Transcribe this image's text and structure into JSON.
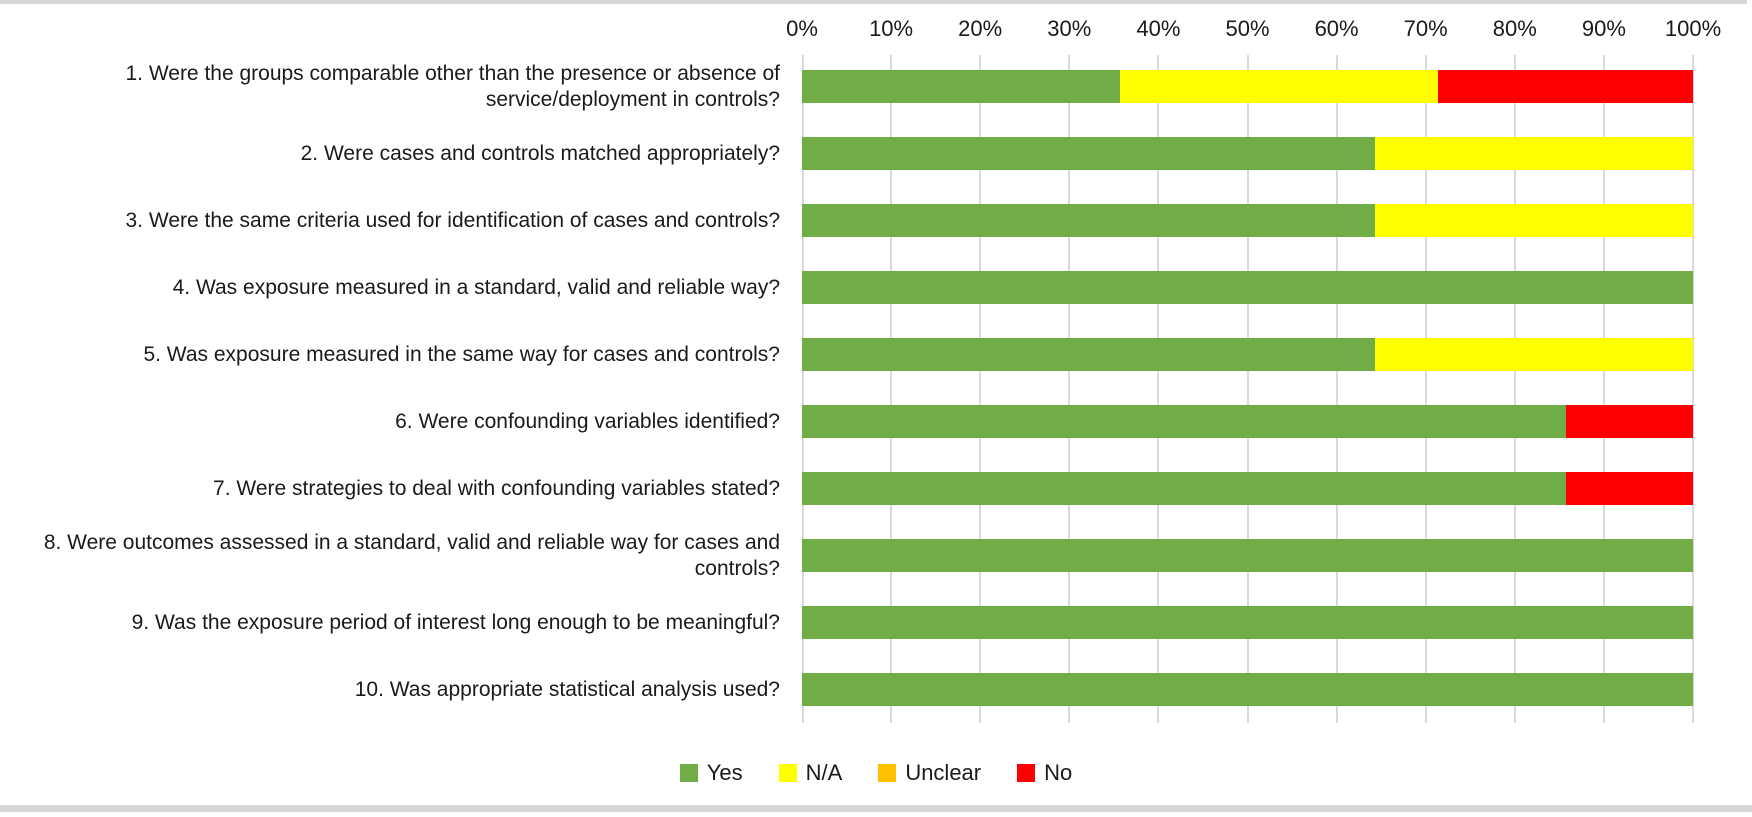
{
  "chart_data": {
    "type": "bar",
    "orientation": "horizontal_stacked",
    "title": "",
    "xlabel": "",
    "ylabel": "",
    "xlim": [
      0,
      100
    ],
    "grid": true,
    "x_ticks": [
      "0%",
      "10%",
      "20%",
      "30%",
      "40%",
      "50%",
      "60%",
      "70%",
      "80%",
      "90%",
      "100%"
    ],
    "categories": [
      "1. Were the groups comparable other than the presence or absence of service/deployment  in controls?",
      "2. Were cases and controls matched appropriately?",
      "3. Were the same criteria used for identification of cases and controls?",
      "4. Was exposure measured in a standard, valid and reliable way?",
      "5. Was exposure measured in the same way for cases and controls?",
      "6. Were confounding variables identified?",
      "7. Were strategies to deal with confounding variables stated?",
      "8. Were outcomes assessed in a standard, valid and reliable way for cases and controls?",
      "9. Was the exposure period of interest long enough to be meaningful?",
      "10. Was appropriate statistical analysis used?"
    ],
    "series": [
      {
        "name": "Yes",
        "color": "#70AD47",
        "values": [
          35.7,
          64.3,
          64.3,
          100,
          64.3,
          85.7,
          85.7,
          100,
          100,
          100
        ]
      },
      {
        "name": "N/A",
        "color": "#FFFF00",
        "values": [
          35.7,
          35.7,
          35.7,
          0,
          35.7,
          0,
          0,
          0,
          0,
          0
        ]
      },
      {
        "name": "Unclear",
        "color": "#FFC000",
        "values": [
          0,
          0,
          0,
          0,
          0,
          0,
          0,
          0,
          0,
          0
        ]
      },
      {
        "name": "No",
        "color": "#FF0000",
        "values": [
          28.6,
          0,
          0,
          0,
          0,
          14.3,
          14.3,
          0,
          0,
          0
        ]
      }
    ],
    "legend": [
      "Yes",
      "N/A",
      "Unclear",
      "No"
    ],
    "legend_position": "bottom"
  },
  "style": {
    "gridline_color": "#D9D9D9",
    "border_band_color": "#D6D6D6",
    "text_color": "#1A1A1A"
  }
}
